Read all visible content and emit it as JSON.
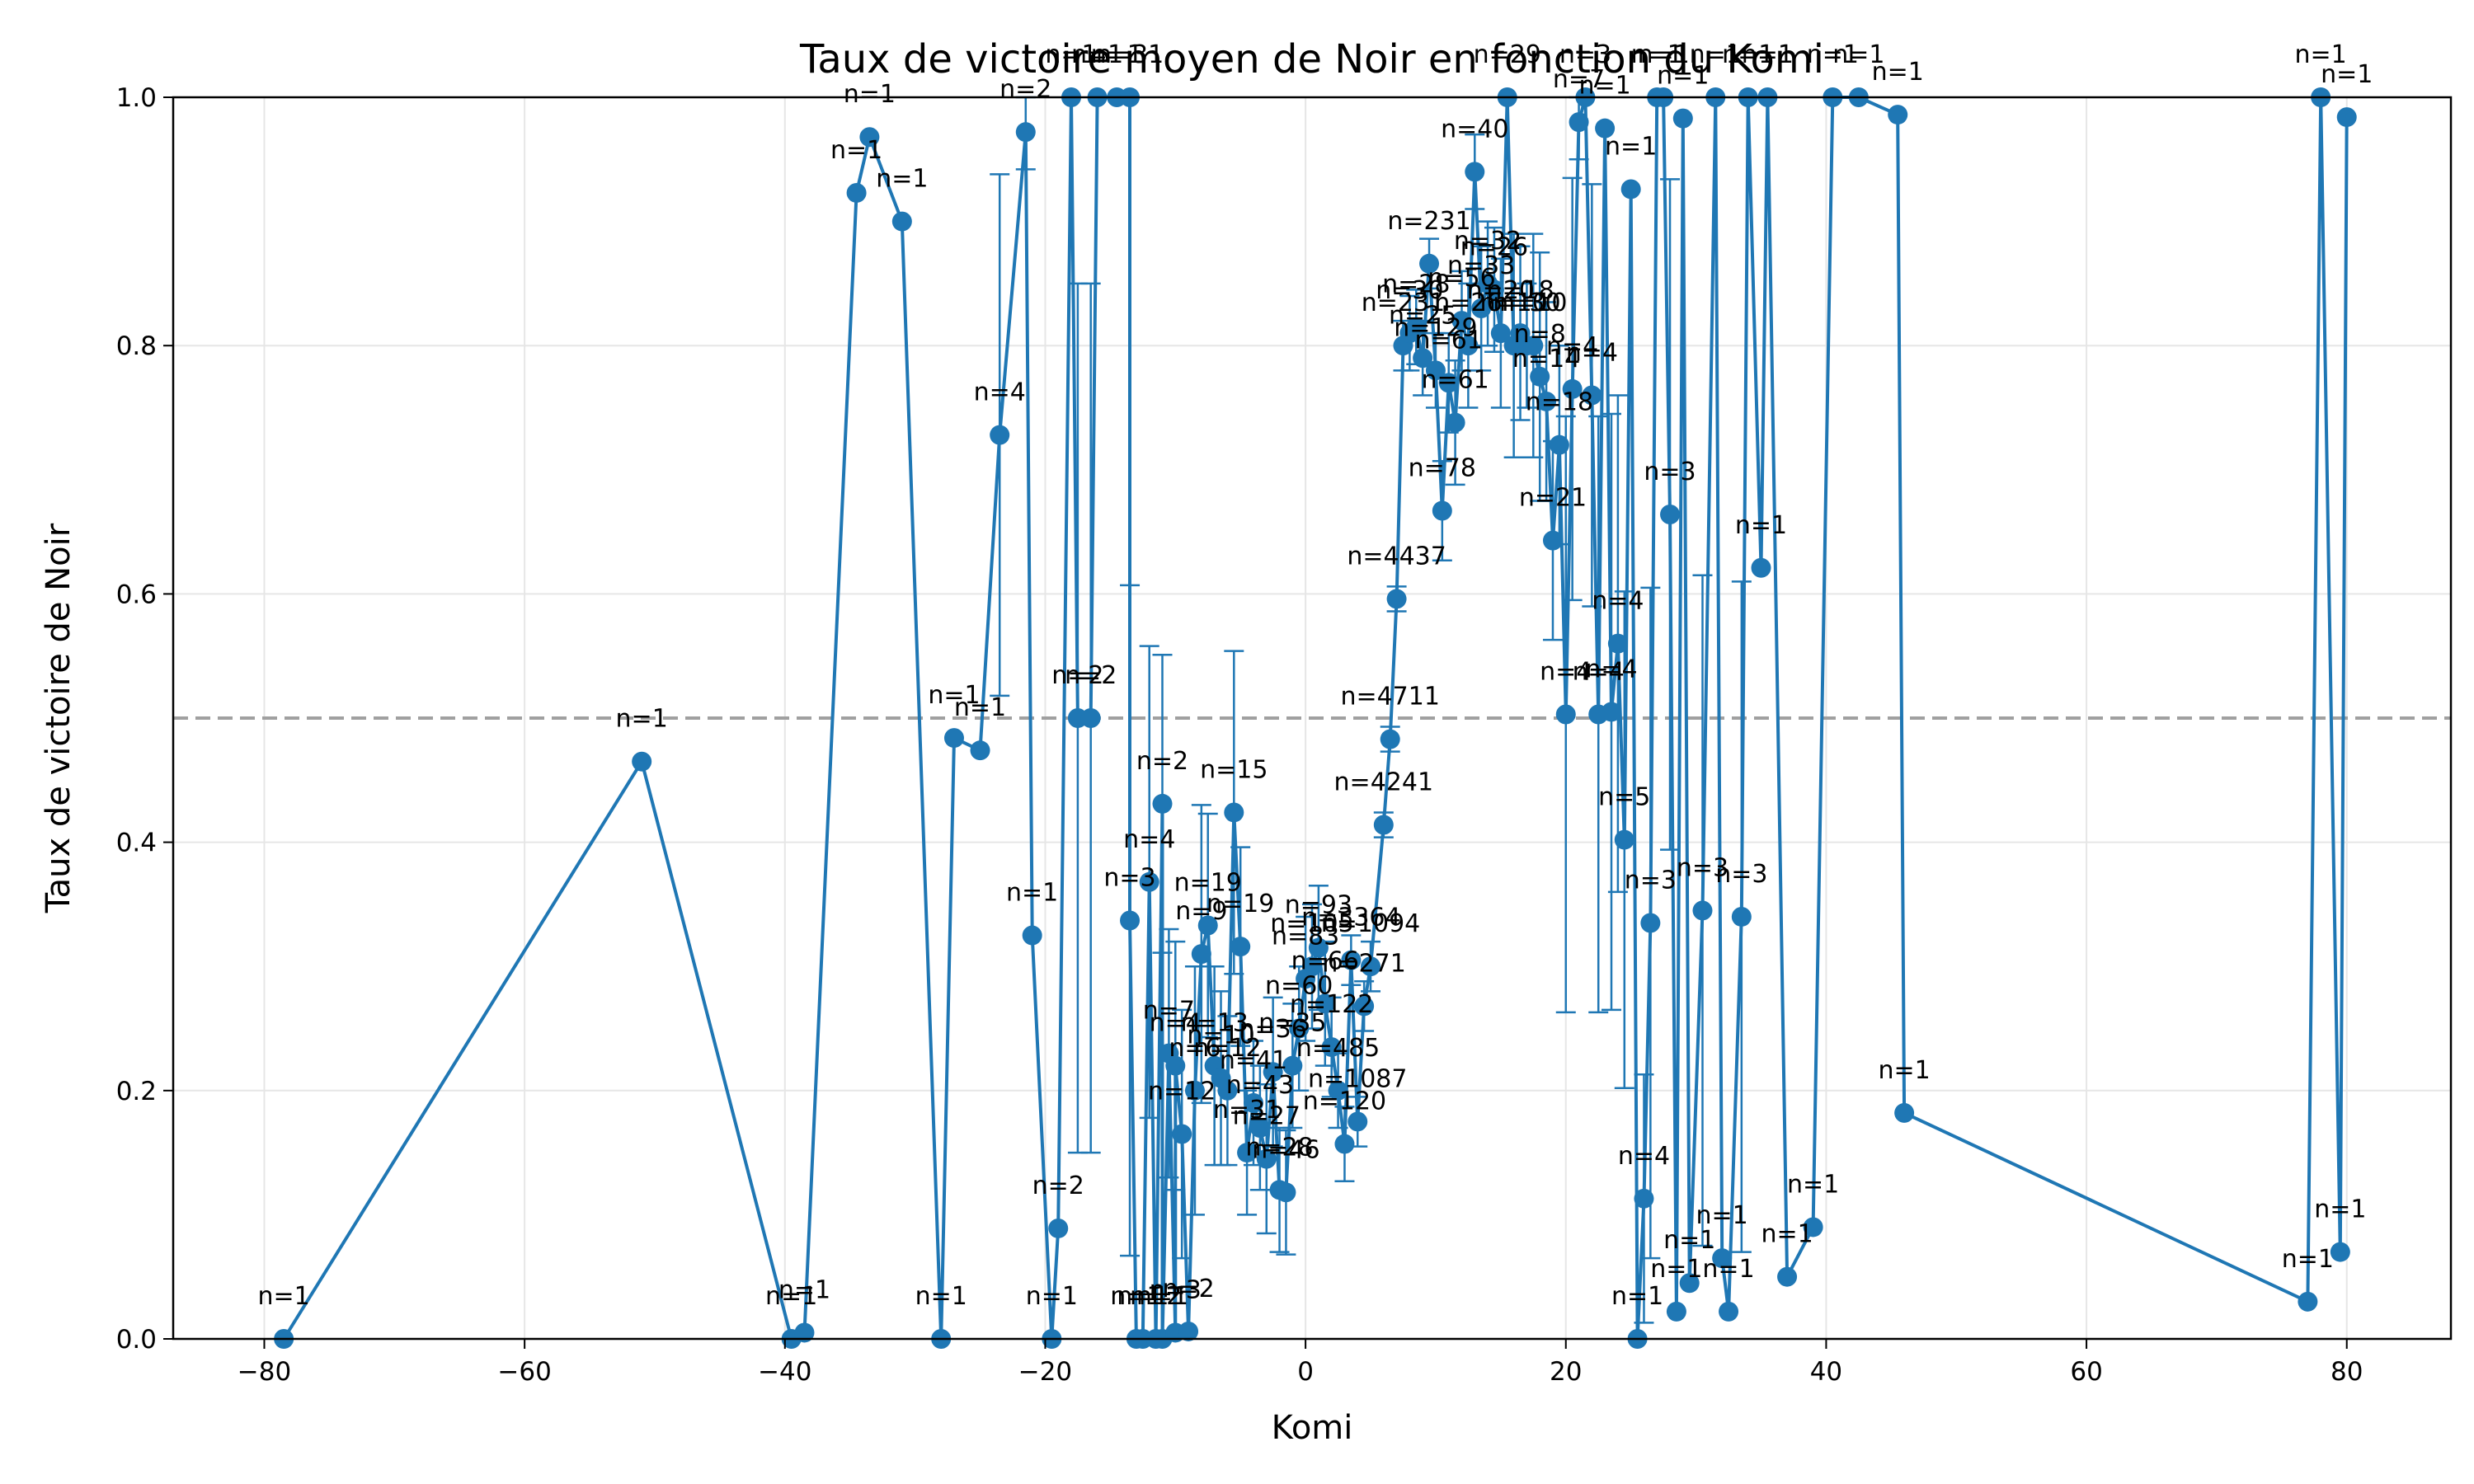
{
  "chart_data": {
    "type": "line",
    "title": "Taux de victoire moyen de Noir en fonction du Komi",
    "xlabel": "Komi",
    "ylabel": "Taux de victoire de Noir",
    "xlim": [
      -87,
      88
    ],
    "ylim": [
      0,
      1
    ],
    "x_ticks": [
      -80,
      -60,
      -40,
      -20,
      0,
      20,
      40,
      60,
      80
    ],
    "y_ticks": [
      0.0,
      0.2,
      0.4,
      0.6,
      0.8,
      1.0
    ],
    "x_tick_labels": [
      "−80",
      "−60",
      "−40",
      "−20",
      "0",
      "20",
      "40",
      "60",
      "80"
    ],
    "y_tick_labels": [
      "0.0",
      "0.2",
      "0.4",
      "0.6",
      "0.8",
      "1.0"
    ],
    "grid": true,
    "reference_line": {
      "y": 0.5,
      "style": "dashed",
      "color": "#a0a0a0"
    },
    "line_color": "#1f77b4",
    "series": [
      {
        "points": [
          {
            "x": -78.5,
            "y": 0.0,
            "n": "n=1"
          },
          {
            "x": -51,
            "y": 0.465,
            "n": "n=1"
          },
          {
            "x": -39.5,
            "y": 0.0,
            "n": "n=1"
          },
          {
            "x": -38.5,
            "y": 0.005,
            "n": "n=1"
          },
          {
            "x": -34.5,
            "y": 0.923,
            "n": "n=1"
          },
          {
            "x": -33.5,
            "y": 0.968,
            "n": "n=1"
          },
          {
            "x": -31,
            "y": 0.9,
            "n": "n=1"
          },
          {
            "x": -28,
            "y": 0.0,
            "n": "n=1"
          },
          {
            "x": -27,
            "y": 0.484,
            "n": "n=1"
          },
          {
            "x": -25,
            "y": 0.474,
            "n": "n=1"
          },
          {
            "x": -23.5,
            "y": 0.728,
            "n": "n=4",
            "err": 0.21
          },
          {
            "x": -21.5,
            "y": 0.972,
            "n": "n=2",
            "err": 0.03
          },
          {
            "x": -21,
            "y": 0.325,
            "n": "n=1"
          },
          {
            "x": -19.5,
            "y": 0.0,
            "n": "n=1"
          },
          {
            "x": -19,
            "y": 0.089,
            "n": "n=2",
            "err": 0.0
          },
          {
            "x": -18,
            "y": 1.0,
            "n": "n=1"
          },
          {
            "x": -17.5,
            "y": 0.5,
            "n": "n=2",
            "err": 0.35
          },
          {
            "x": -16.5,
            "y": 0.5,
            "n": "n=2",
            "err": 0.35
          },
          {
            "x": -16,
            "y": 1.0,
            "n": "n=1"
          },
          {
            "x": -14.5,
            "y": 1.0,
            "n": "n=1"
          },
          {
            "x": -13.5,
            "y": 1.0,
            "n": "n=31"
          },
          {
            "x": -13.5,
            "y": 0.337,
            "n": "n=3",
            "err": 0.27
          },
          {
            "x": -13,
            "y": 0.0,
            "n": "n=1"
          },
          {
            "x": -12.5,
            "y": 0.0,
            "n": "n=1"
          },
          {
            "x": -12,
            "y": 0.368,
            "n": "n=4",
            "err": 0.19
          },
          {
            "x": -11.5,
            "y": 0.0,
            "n": "n=2"
          },
          {
            "x": -11,
            "y": 0.431,
            "n": "n=2",
            "err": 0.12
          },
          {
            "x": -11,
            "y": 0.0,
            "n": "n=1"
          },
          {
            "x": -10.5,
            "y": 0.23,
            "n": "n=7",
            "err": 0.1
          },
          {
            "x": -10,
            "y": 0.005,
            "n": "n=3"
          },
          {
            "x": -10,
            "y": 0.22,
            "n": "n=4",
            "err": 0.1
          },
          {
            "x": -9.5,
            "y": 0.165,
            "n": "n=12",
            "err": 0.1
          },
          {
            "x": -9,
            "y": 0.006,
            "n": "n=2"
          },
          {
            "x": -8.5,
            "y": 0.2,
            "n": "n=6",
            "err": 0.1
          },
          {
            "x": -8,
            "y": 0.31,
            "n": "n=9",
            "err": 0.12
          },
          {
            "x": -7.5,
            "y": 0.333,
            "n": "n=19",
            "err": 0.09
          },
          {
            "x": -7,
            "y": 0.22,
            "n": "n=13",
            "err": 0.08
          },
          {
            "x": -6.5,
            "y": 0.21,
            "n": "n=10",
            "err": 0.07
          },
          {
            "x": -6,
            "y": 0.2,
            "n": "n=12",
            "err": 0.06
          },
          {
            "x": -5.5,
            "y": 0.424,
            "n": "n=15",
            "err": 0.13
          },
          {
            "x": -5,
            "y": 0.316,
            "n": "n=19",
            "err": 0.08
          },
          {
            "x": -4.5,
            "y": 0.15,
            "n": "n=31",
            "err": 0.05
          },
          {
            "x": -4,
            "y": 0.19,
            "n": "n=41",
            "err": 0.05
          },
          {
            "x": -3.5,
            "y": 0.17,
            "n": "n=43",
            "err": 0.05
          },
          {
            "x": -3,
            "y": 0.145,
            "n": "n=27",
            "err": 0.06
          },
          {
            "x": -2.5,
            "y": 0.215,
            "n": "n=36",
            "err": 0.06
          },
          {
            "x": -2,
            "y": 0.12,
            "n": "n=28",
            "err": 0.05
          },
          {
            "x": -1.5,
            "y": 0.118,
            "n": "n=46",
            "err": 0.05
          },
          {
            "x": -1,
            "y": 0.22,
            "n": "n=35",
            "err": 0.05
          },
          {
            "x": -0.5,
            "y": 0.25,
            "n": "n=60",
            "err": 0.05
          },
          {
            "x": 0,
            "y": 0.29,
            "n": "n=83",
            "err": 0.05
          },
          {
            "x": 0.5,
            "y": 0.3,
            "n": "n=105",
            "err": 0.05
          },
          {
            "x": 1,
            "y": 0.315,
            "n": "n=93",
            "err": 0.05
          },
          {
            "x": 1.5,
            "y": 0.27,
            "n": "n=66",
            "err": 0.05
          },
          {
            "x": 2,
            "y": 0.235,
            "n": "n=122",
            "err": 0.04
          },
          {
            "x": 2.5,
            "y": 0.2,
            "n": "n=485",
            "err": 0.03
          },
          {
            "x": 3,
            "y": 0.157,
            "n": "n=120",
            "err": 0.03
          },
          {
            "x": 3.5,
            "y": 0.305,
            "n": "n=3364",
            "err": 0.02
          },
          {
            "x": 4,
            "y": 0.175,
            "n": "n=1087",
            "err": 0.02
          },
          {
            "x": 4.5,
            "y": 0.268,
            "n": "n=271",
            "err": 0.02
          },
          {
            "x": 5,
            "y": 0.3,
            "n": "n=1094",
            "err": 0.02
          },
          {
            "x": 6,
            "y": 0.414,
            "n": "n=4241",
            "err": 0.01
          },
          {
            "x": 6.5,
            "y": 0.483,
            "n": "n=4711",
            "err": 0.01
          },
          {
            "x": 7,
            "y": 0.596,
            "n": "n=4437",
            "err": 0.01
          },
          {
            "x": 7.5,
            "y": 0.8,
            "n": "n=231",
            "err": 0.02
          },
          {
            "x": 8,
            "y": 0.81,
            "n": "n=30",
            "err": 0.03
          },
          {
            "x": 8.5,
            "y": 0.815,
            "n": "n=28",
            "err": 0.03
          },
          {
            "x": 9,
            "y": 0.79,
            "n": "n=25",
            "err": 0.03
          },
          {
            "x": 9.5,
            "y": 0.866,
            "n": "n=231",
            "err": 0.02
          },
          {
            "x": 10,
            "y": 0.78,
            "n": "n=129",
            "err": 0.03
          },
          {
            "x": 10.5,
            "y": 0.667,
            "n": "n=78",
            "err": 0.04
          },
          {
            "x": 11,
            "y": 0.77,
            "n": "n=61",
            "err": 0.04
          },
          {
            "x": 11.5,
            "y": 0.738,
            "n": "n=61",
            "err": 0.05
          },
          {
            "x": 12,
            "y": 0.82,
            "n": "n=56",
            "err": 0.04
          },
          {
            "x": 12.5,
            "y": 0.8,
            "n": "n=26",
            "err": 0.05
          },
          {
            "x": 13,
            "y": 0.94,
            "n": "n=40",
            "err": 0.03
          },
          {
            "x": 13.5,
            "y": 0.83,
            "n": "n=33",
            "err": 0.05
          },
          {
            "x": 14,
            "y": 0.85,
            "n": "n=32",
            "err": 0.05
          },
          {
            "x": 14.5,
            "y": 0.845,
            "n": "n=26",
            "err": 0.05
          },
          {
            "x": 15,
            "y": 0.81,
            "n": "n=20",
            "err": 0.06
          },
          {
            "x": 15.5,
            "y": 1.0,
            "n": "n=29"
          },
          {
            "x": 16,
            "y": 0.8,
            "n": "n=10",
            "err": 0.09
          },
          {
            "x": 16.5,
            "y": 0.81,
            "n": "n=18",
            "err": 0.07
          },
          {
            "x": 17,
            "y": 0.8,
            "n": "n=30",
            "err": 0.05
          },
          {
            "x": 17.5,
            "y": 0.8,
            "n": "n=10",
            "err": 0.09
          },
          {
            "x": 18,
            "y": 0.775,
            "n": "n=8",
            "err": 0.1
          },
          {
            "x": 18.5,
            "y": 0.755,
            "n": "n=14",
            "err": 0.08
          },
          {
            "x": 19,
            "y": 0.643,
            "n": "n=21",
            "err": 0.08
          },
          {
            "x": 19.5,
            "y": 0.72,
            "n": "n=18",
            "err": 0.08
          },
          {
            "x": 20,
            "y": 0.503,
            "n": "n=4",
            "err": 0.24
          },
          {
            "x": 20.5,
            "y": 0.765,
            "n": "n=4",
            "err": 0.17
          },
          {
            "x": 21,
            "y": 0.98,
            "n": "n=7",
            "err": 0.03
          },
          {
            "x": 21.5,
            "y": 1.0,
            "n": "n=3"
          },
          {
            "x": 22,
            "y": 0.76,
            "n": "n=4",
            "err": 0.17
          },
          {
            "x": 22.5,
            "y": 0.503,
            "n": "n=4",
            "err": 0.24
          },
          {
            "x": 23,
            "y": 0.975,
            "n": "n=1"
          },
          {
            "x": 23.5,
            "y": 0.505,
            "n": "n=4",
            "err": 0.24
          },
          {
            "x": 24,
            "y": 0.56,
            "n": "n=4",
            "err": 0.2
          },
          {
            "x": 24.5,
            "y": 0.402,
            "n": "n=5",
            "err": 0.2
          },
          {
            "x": 25,
            "y": 0.926,
            "n": "n=1"
          },
          {
            "x": 25.5,
            "y": 0.0,
            "n": "n=1"
          },
          {
            "x": 26,
            "y": 0.113,
            "n": "n=4",
            "err": 0.1
          },
          {
            "x": 26.5,
            "y": 0.335,
            "n": "n=3",
            "err": 0.27
          },
          {
            "x": 27,
            "y": 1.0,
            "n": "n=1"
          },
          {
            "x": 27.5,
            "y": 1.0,
            "n": "n=1"
          },
          {
            "x": 28,
            "y": 0.664,
            "n": "n=3",
            "err": 0.27
          },
          {
            "x": 28.5,
            "y": 0.022,
            "n": "n=1"
          },
          {
            "x": 29,
            "y": 0.983,
            "n": "n=1"
          },
          {
            "x": 29.5,
            "y": 0.045,
            "n": "n=1"
          },
          {
            "x": 30.5,
            "y": 0.345,
            "n": "n=3",
            "err": 0.27
          },
          {
            "x": 31.5,
            "y": 1.0,
            "n": "n=1"
          },
          {
            "x": 32,
            "y": 0.065,
            "n": "n=1"
          },
          {
            "x": 32.5,
            "y": 0.022,
            "n": "n=1"
          },
          {
            "x": 33.5,
            "y": 0.34,
            "n": "n=3",
            "err": 0.27
          },
          {
            "x": 34,
            "y": 1.0,
            "n": "n=1"
          },
          {
            "x": 35,
            "y": 0.621,
            "n": "n=1"
          },
          {
            "x": 35.5,
            "y": 1.0,
            "n": "n=1"
          },
          {
            "x": 37,
            "y": 0.05,
            "n": "n=1"
          },
          {
            "x": 39,
            "y": 0.09,
            "n": "n=1"
          },
          {
            "x": 40.5,
            "y": 1.0,
            "n": "n=1"
          },
          {
            "x": 42.5,
            "y": 1.0,
            "n": "n=1"
          },
          {
            "x": 45.5,
            "y": 0.986,
            "n": "n=1"
          },
          {
            "x": 46,
            "y": 0.182,
            "n": "n=1"
          },
          {
            "x": 77,
            "y": 0.03,
            "n": "n=1"
          },
          {
            "x": 78,
            "y": 1.0,
            "n": "n=1"
          },
          {
            "x": 79.5,
            "y": 0.07,
            "n": "n=1"
          },
          {
            "x": 80,
            "y": 0.984,
            "n": "n=1"
          }
        ]
      }
    ]
  }
}
